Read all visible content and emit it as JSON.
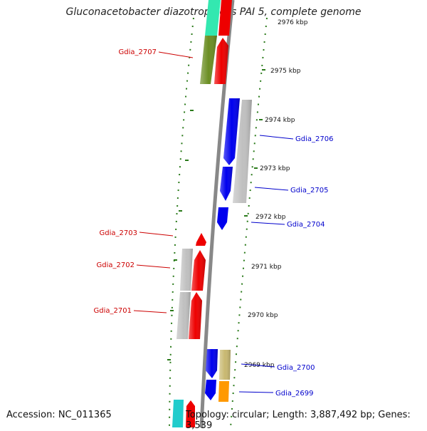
{
  "title": "Gluconacetobacter diazotrophicus PAI 5, complete genome",
  "accession_text": "Accession: NC_011365",
  "topology_text": "Topology: circular; Length: 3,887,492 bp; Genes: 3,539",
  "colors": {
    "backbone": "#808080",
    "ticks": "#2a7a1a",
    "left_label": "#cc0000",
    "right_label": "#0000cc"
  },
  "ticks": [
    "2976 kbp",
    "2975 kbp",
    "2974 kbp",
    "2973 kbp",
    "2972 kbp",
    "2971 kbp",
    "2970 kbp",
    "2969 kbp"
  ],
  "genes": [
    {
      "name": "Gdia_2707",
      "color": "#6b8e23",
      "strand": "-"
    },
    {
      "name": "Gdia_2706",
      "color": "#c0c0c0",
      "strand": "+"
    },
    {
      "name": "Gdia_2705",
      "color": "#0000ee",
      "strand": "+"
    },
    {
      "name": "Gdia_2704",
      "color": "#0000ee",
      "strand": "+"
    },
    {
      "name": "Gdia_2703",
      "color": "#ee0000",
      "strand": "-"
    },
    {
      "name": "Gdia_2702",
      "color": "#c0c0c0",
      "strand": "-"
    },
    {
      "name": "Gdia_2701",
      "color": "#ee0000",
      "strand": "-"
    },
    {
      "name": "Gdia_2700",
      "color": "#c8b870",
      "strand": "+"
    },
    {
      "name": "Gdia_2699",
      "color": "#ff9900",
      "strand": "+"
    }
  ]
}
